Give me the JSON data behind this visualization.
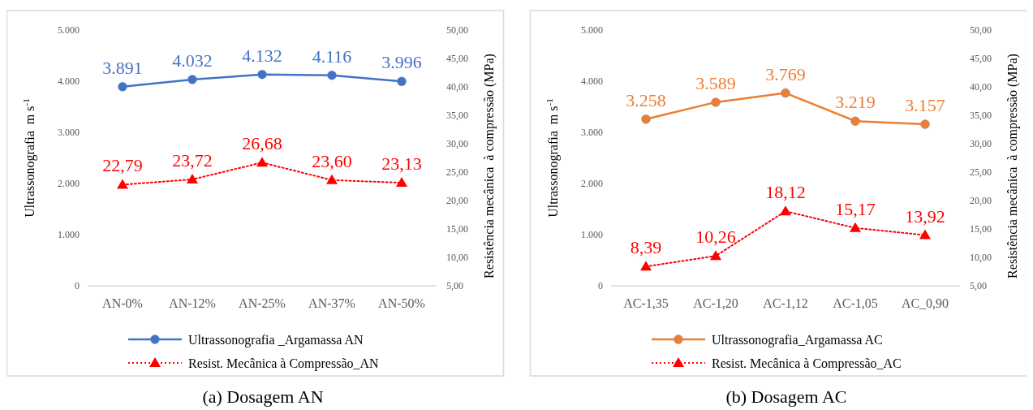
{
  "chart_data": [
    {
      "type": "line",
      "title": "(a) Dosagem AN",
      "ylabel": "Ultrassonografia  m s$^{-1}$",
      "y2label": "Resistência mecânica  à compressão (MPa)",
      "categories": [
        "AN-0%",
        "AN-12%",
        "AN-25%",
        "AN-37%",
        "AN-50%"
      ],
      "ylim": [
        0,
        5000
      ],
      "yticks": [
        {
          "value": 0,
          "label": "0"
        },
        {
          "value": 1000,
          "label": "1.000"
        },
        {
          "value": 2000,
          "label": "2.000"
        },
        {
          "value": 3000,
          "label": "3.000"
        },
        {
          "value": 4000,
          "label": "4.000"
        },
        {
          "value": 5000,
          "label": "5.000"
        }
      ],
      "y2lim": [
        5,
        50
      ],
      "y2ticks": [
        {
          "value": 5,
          "label": "5,00"
        },
        {
          "value": 10,
          "label": "10,00"
        },
        {
          "value": 15,
          "label": "15,00"
        },
        {
          "value": 20,
          "label": "20,00"
        },
        {
          "value": 25,
          "label": "25,00"
        },
        {
          "value": 30,
          "label": "30,00"
        },
        {
          "value": 35,
          "label": "35,00"
        },
        {
          "value": 40,
          "label": "40,00"
        },
        {
          "value": 45,
          "label": "45,00"
        },
        {
          "value": 50,
          "label": "50,00"
        }
      ],
      "legend": "bottom",
      "series": [
        {
          "name": "Ultrassonografia _Argamassa AN",
          "color": "#4472c4",
          "marker": "circle",
          "line_style": "solid",
          "values": [
            3891,
            4032,
            4132,
            4116,
            3996
          ],
          "value_labels": [
            "3.891",
            "4.032",
            "4.132",
            "4.116",
            "3.996"
          ]
        },
        {
          "name": "Resist. Mecânica à Compressão_AN",
          "color": "#ff0000",
          "marker": "triangle",
          "line_style": "dotted",
          "axis": "y2",
          "values": [
            22.79,
            23.72,
            26.68,
            23.6,
            23.13
          ],
          "value_labels": [
            "22,79",
            "23,72",
            "26,68",
            "23,60",
            "23,13"
          ]
        }
      ]
    },
    {
      "type": "line",
      "title": "(b) Dosagem AC",
      "ylabel": "Ultrassonografia  m s$^{-1}$",
      "y2label": "Resistência mecânica  à compressão (MPa)",
      "categories": [
        "AC-1,35",
        "AC-1,20",
        "AC-1,12",
        "AC-1,05",
        "AC_0,90"
      ],
      "ylim": [
        0,
        5000
      ],
      "yticks": [
        {
          "value": 0,
          "label": "0"
        },
        {
          "value": 1000,
          "label": "1.000"
        },
        {
          "value": 2000,
          "label": "2.000"
        },
        {
          "value": 3000,
          "label": "3.000"
        },
        {
          "value": 4000,
          "label": "4.000"
        },
        {
          "value": 5000,
          "label": "5.000"
        }
      ],
      "y2lim": [
        5,
        50
      ],
      "y2ticks": [
        {
          "value": 5,
          "label": "5,00"
        },
        {
          "value": 10,
          "label": "10,00"
        },
        {
          "value": 15,
          "label": "15,00"
        },
        {
          "value": 20,
          "label": "20,00"
        },
        {
          "value": 25,
          "label": "25,00"
        },
        {
          "value": 30,
          "label": "30,00"
        },
        {
          "value": 35,
          "label": "35,00"
        },
        {
          "value": 40,
          "label": "40,00"
        },
        {
          "value": 45,
          "label": "45,00"
        },
        {
          "value": 50,
          "label": "50,00"
        }
      ],
      "legend": "bottom",
      "series": [
        {
          "name": "Ultrassonografia_Argamassa AC",
          "color": "#ed7d31",
          "marker": "circle",
          "line_style": "solid",
          "values": [
            3258,
            3589,
            3769,
            3219,
            3157
          ],
          "value_labels": [
            "3.258",
            "3.589",
            "3.769",
            "3.219",
            "3.157"
          ]
        },
        {
          "name": "Resist. Mecânica à Compressão_AC",
          "color": "#ff0000",
          "marker": "triangle",
          "line_style": "dotted",
          "axis": "y2",
          "values": [
            8.39,
            10.26,
            18.12,
            15.17,
            13.92
          ],
          "value_labels": [
            "8,39",
            "10,26",
            "18,12",
            "15,17",
            "13,92"
          ]
        }
      ]
    }
  ]
}
